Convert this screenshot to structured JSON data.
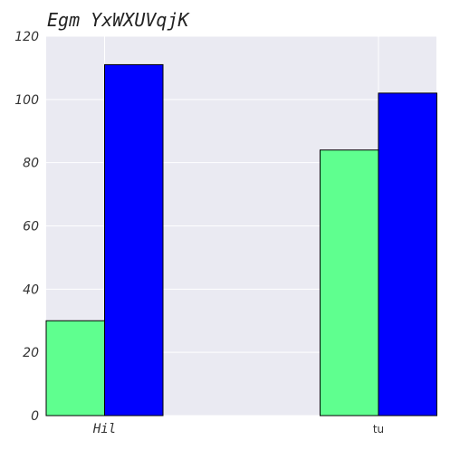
{
  "chart_data": {
    "type": "bar",
    "title": "Egm YxWXUVqjK",
    "categories": [
      "Hil",
      "tu"
    ],
    "series": [
      {
        "values": [
          30,
          84
        ],
        "color": "#5fff8f"
      },
      {
        "values": [
          111,
          102
        ],
        "color": "#0000ff"
      }
    ],
    "ylim": [
      0,
      120
    ],
    "yticks": [
      0,
      20,
      40,
      60,
      80,
      100,
      120
    ],
    "grid": true,
    "background": "#eaeaf2"
  }
}
